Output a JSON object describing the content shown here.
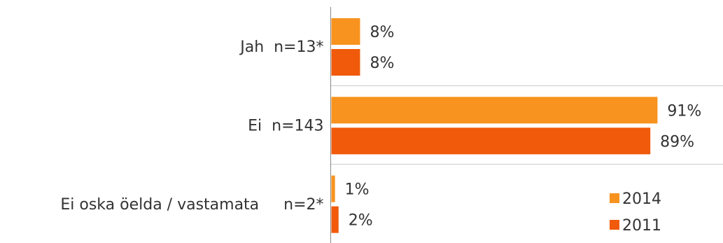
{
  "chart_data": {
    "type": "bar",
    "orientation": "horizontal",
    "categories": [
      "Jah  n=13*",
      "Ei  n=143",
      "Ei oska öelda / vastamata     n=2*"
    ],
    "series": [
      {
        "name": "2014",
        "color": "#F7931E",
        "values": [
          8,
          91,
          1
        ],
        "labels": [
          "8%",
          "91%",
          "1%"
        ]
      },
      {
        "name": "2011",
        "color": "#F05A0A",
        "values": [
          8,
          89,
          2
        ],
        "labels": [
          "8%",
          "89%",
          "2%"
        ]
      }
    ],
    "xlim": [
      0,
      100
    ],
    "xlabel": "",
    "ylabel": "",
    "title": "",
    "grid": false,
    "legend_position": "bottom-right"
  }
}
